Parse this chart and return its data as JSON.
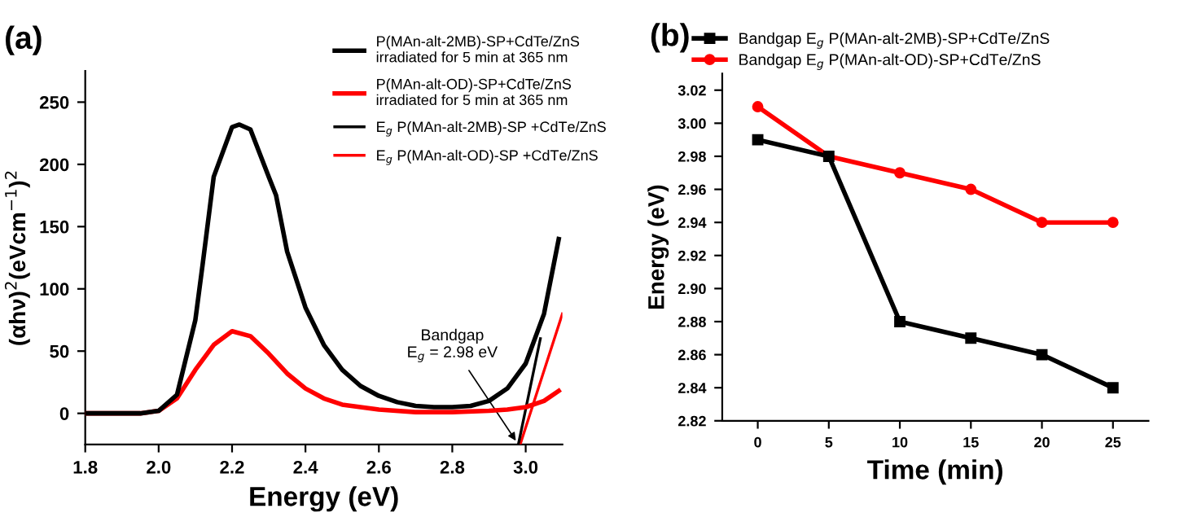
{
  "chart_data": [
    {
      "type": "line",
      "title": "(a)",
      "xlabel": "Energy (eV)",
      "ylabel": "(αhν)$^{2}$(eVcm$^{−1}$)$^{2}$",
      "xlim": [
        1.8,
        3.1
      ],
      "ylim": [
        -25,
        275
      ],
      "xticks": [
        1.8,
        {
          "value": 2.0,
          "label": "2.0"
        },
        2.2,
        2.4,
        2.6,
        2.8,
        {
          "value": 3.0,
          "label": "3.0"
        }
      ],
      "yticks": [
        0,
        50,
        100,
        150,
        200,
        250
      ],
      "legend": "top right",
      "grid": false,
      "marker": "none",
      "series": [
        {
          "name": "P(MAn-alt-2MB)-SP+CdTe/ZnS\nirradiated for 5 min at 365 nm",
          "color": "#000000",
          "x": [
            1.8,
            1.95,
            2.0,
            2.05,
            2.1,
            2.12,
            2.15,
            2.2,
            2.22,
            2.25,
            2.3,
            2.32,
            2.35,
            2.4,
            2.45,
            2.5,
            2.55,
            2.6,
            2.65,
            2.7,
            2.75,
            2.8,
            2.85,
            2.9,
            2.95,
            3.0,
            3.05,
            3.09
          ],
          "values": [
            0,
            0,
            2,
            15,
            75,
            120,
            190,
            230,
            232,
            228,
            190,
            175,
            130,
            85,
            55,
            35,
            22,
            14,
            9,
            6,
            5,
            5,
            6,
            10,
            20,
            40,
            80,
            140
          ]
        },
        {
          "name": "P(MAn-alt-OD)-SP+CdTe/ZnS\nirradiated for 5 min at 365 nm",
          "color": "#ff0000",
          "x": [
            1.8,
            1.95,
            2.0,
            2.05,
            2.1,
            2.15,
            2.2,
            2.25,
            2.3,
            2.35,
            2.4,
            2.45,
            2.5,
            2.6,
            2.7,
            2.8,
            2.9,
            2.95,
            3.0,
            3.05,
            3.09
          ],
          "values": [
            0,
            0,
            2,
            12,
            35,
            55,
            66,
            62,
            48,
            32,
            20,
            12,
            7,
            3,
            1,
            1,
            2,
            3,
            5,
            10,
            18
          ]
        },
        {
          "name": "E$_{g}$ P(MAn-alt-2MB)-SP +CdTe/ZnS",
          "color": "#000000",
          "x": [
            2.98,
            3.04
          ],
          "values": [
            -25,
            60
          ]
        },
        {
          "name": "E$_{g}$ P(MAn-alt-OD)-SP +CdTe/ZnS",
          "color": "#ff0000",
          "x": [
            2.985,
            3.1
          ],
          "values": [
            -25,
            80
          ]
        }
      ],
      "annotations": [
        {
          "text": "Bandgap\nE$_{g}$ = 2.98 eV",
          "x": 2.98,
          "y": -25
        }
      ]
    },
    {
      "type": "line",
      "title": "(b)",
      "xlabel": "Time (min)",
      "ylabel": "Energy (eV)",
      "xlim": [
        -2.5,
        27.5
      ],
      "ylim": [
        2.82,
        3.03
      ],
      "x": [
        0,
        5,
        10,
        15,
        20,
        25
      ],
      "xticks": [
        0,
        5,
        10,
        15,
        20,
        25
      ],
      "yticks": [
        2.82,
        2.84,
        2.86,
        2.88,
        {
          "value": 2.9,
          "label": "2.90"
        },
        2.92,
        2.94,
        2.96,
        2.98,
        {
          "value": 3.0,
          "label": "3.00"
        },
        3.02
      ],
      "legend": "top",
      "grid": false,
      "marker": "square",
      "series": [
        {
          "name": "Bandgap E$_{g}$ P(MAn-alt-2MB)-SP+CdTe/ZnS",
          "color": "#000000",
          "values": [
            2.99,
            2.98,
            2.88,
            2.87,
            2.86,
            2.84
          ]
        },
        {
          "name": "Bandgap E$_{g}$ P(MAn-alt-OD)-SP+CdTe/ZnS",
          "color": "#ff0000",
          "marker": "circle",
          "values": [
            3.01,
            2.98,
            2.97,
            2.96,
            2.94,
            2.94
          ]
        }
      ]
    }
  ]
}
